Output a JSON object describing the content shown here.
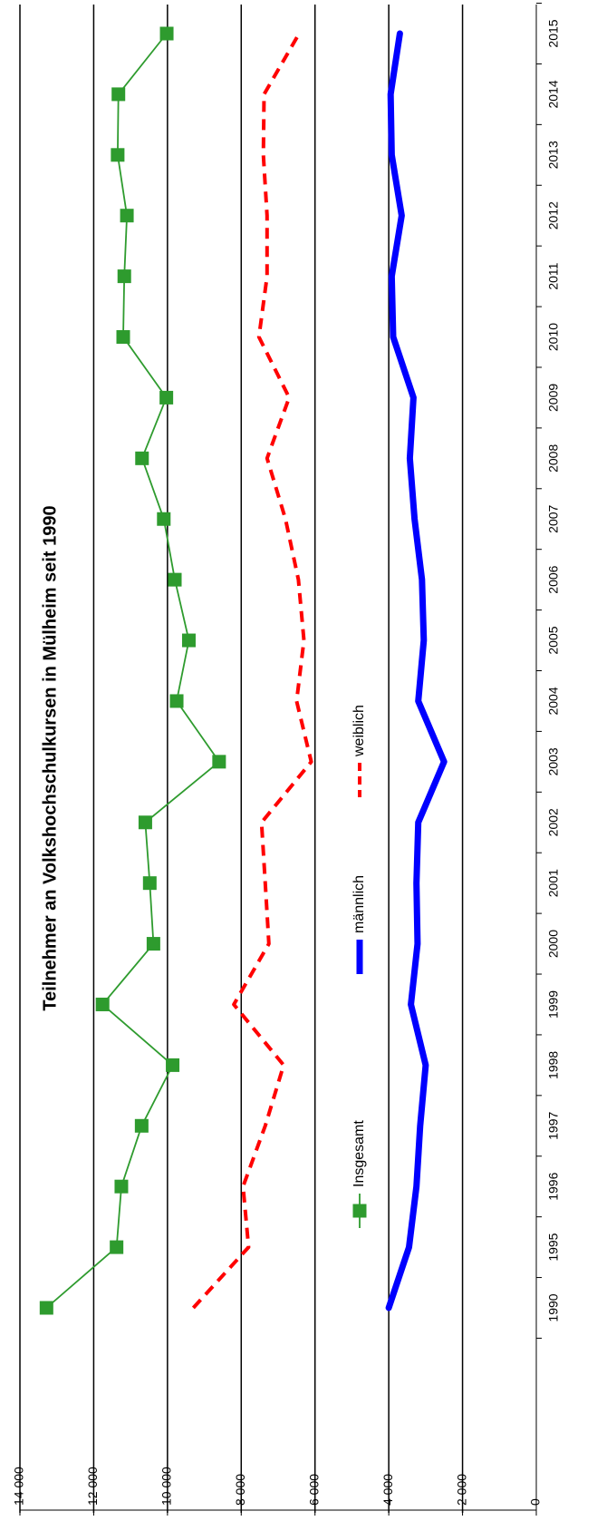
{
  "chart_data": {
    "type": "line",
    "title": "Teilnehmer an Volkshochschulkursen in Mülheim seit 1990",
    "categories": [
      "1990",
      "1995",
      "1996",
      "1997",
      "1998",
      "1999",
      "2000",
      "2001",
      "2002",
      "2003",
      "2004",
      "2005",
      "2006",
      "2007",
      "2008",
      "2009",
      "2010",
      "2011",
      "2012",
      "2013",
      "2014",
      "2015"
    ],
    "series": [
      {
        "name": "Insgesamt",
        "color": "#2e9b2e",
        "marker": "square",
        "style": "solid",
        "values": [
          13280,
          11380,
          11250,
          10700,
          9860,
          11760,
          10380,
          10480,
          10600,
          8600,
          9750,
          9420,
          9800,
          10100,
          10690,
          10030,
          11200,
          11170,
          11100,
          11350,
          11330,
          10020
        ]
      },
      {
        "name": "männlich",
        "color": "#0000ff",
        "marker": "none",
        "style": "thick",
        "values": [
          4000,
          3450,
          3250,
          3150,
          3000,
          3400,
          3220,
          3250,
          3200,
          2500,
          3200,
          3050,
          3100,
          3300,
          3430,
          3330,
          3880,
          3920,
          3650,
          3920,
          3950,
          3700
        ]
      },
      {
        "name": "weiblich",
        "color": "#ff0000",
        "marker": "none",
        "style": "dashed",
        "values": [
          9300,
          7800,
          7950,
          7350,
          6850,
          8200,
          7250,
          7350,
          7450,
          6100,
          6500,
          6300,
          6450,
          6800,
          7300,
          6700,
          7520,
          7300,
          7300,
          7400,
          7380,
          6430
        ]
      }
    ],
    "ylim": [
      0,
      14000
    ],
    "yticks": [
      "0",
      "2 000",
      "4 000",
      "6 000",
      "8 000",
      "10 000",
      "12 000",
      "14 000"
    ],
    "ytick_values": [
      0,
      2000,
      4000,
      6000,
      8000,
      10000,
      12000,
      14000
    ],
    "grid": true,
    "legend": "inside-bottom",
    "orientation": "rotated-90-clockwise"
  }
}
